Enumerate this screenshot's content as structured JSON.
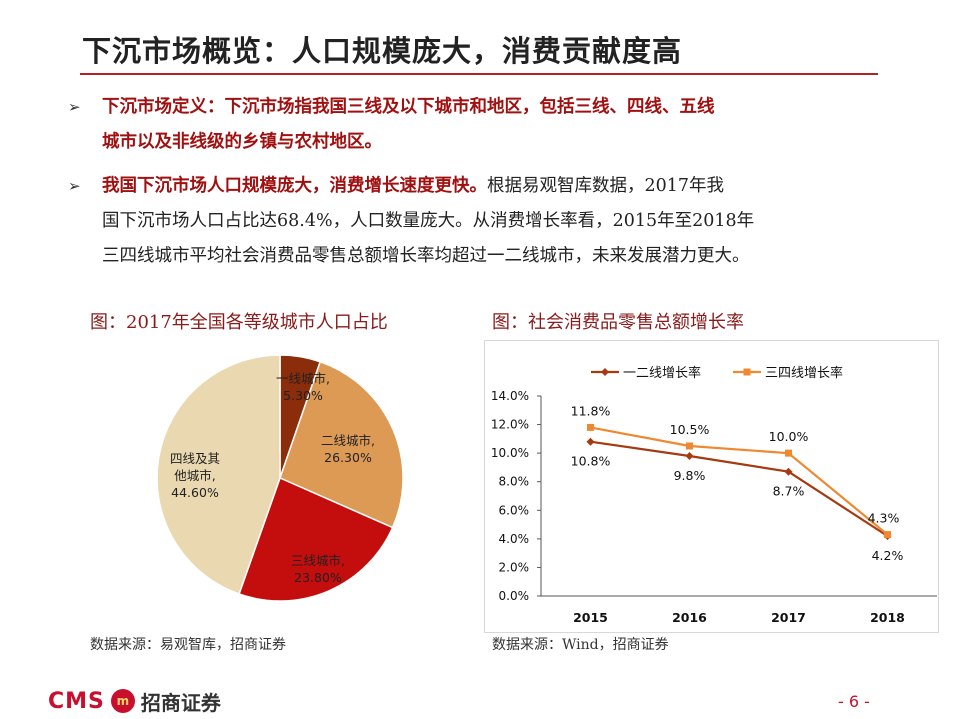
{
  "header": {
    "title": "下沉市场概览：人口规模庞大，消费贡献度高"
  },
  "bullets": [
    {
      "lead": "下沉市场定义：下沉市场指我国三线及以下城市和地区，包括三线、四线、五线城市以及非线级的乡镇与农村地区。",
      "line1": "下沉市场定义：下沉市场指我国三线及以下城市和地区，包括三线、四线、五线",
      "line2": "城市以及非线级的乡镇与农村地区。"
    },
    {
      "lead": "我国下沉市场人口规模庞大，消费增长速度更快。",
      "rest1": "根据易观智库数据，2017年我",
      "line2": "国下沉市场人口占比达68.4%，人口数量庞大。从消费增长率看，2015年至2018年",
      "line3": "三四线城市平均社会消费品零售总额增长率均超过一二线城市，未来发展潜力更大。"
    }
  ],
  "figure_left": {
    "title": "图：2017年全国各等级城市人口占比",
    "source": "数据来源：易观智库，招商证券"
  },
  "figure_right": {
    "title": "图：社会消费品零售总额增长率",
    "source": "数据来源：Wind，招商证券"
  },
  "footer": {
    "brand": "CMS",
    "brand_cn": "招商证券",
    "logo_mark": "m",
    "page": "- 6 -"
  },
  "chart_data": [
    {
      "type": "pie",
      "categories": [
        "一线城市",
        "二线城市",
        "三线城市",
        "四线及其他城市"
      ],
      "values": [
        5.3,
        26.3,
        23.8,
        44.6
      ],
      "value_labels": [
        "5.30%",
        "26.30%",
        "23.80%",
        "44.60%"
      ],
      "label_lines": [
        [
          "一线城市,",
          "5.30%"
        ],
        [
          "二线城市,",
          "26.30%"
        ],
        [
          "三线城市,",
          "23.80%"
        ],
        [
          "四线及其",
          "他城市,",
          "44.60%"
        ]
      ],
      "colors": [
        "#8b2c0a",
        "#dd9a55",
        "#c40d0d",
        "#ead9b0"
      ],
      "title": "图：2017年全国各等级城市人口占比"
    },
    {
      "type": "line",
      "categories": [
        "2015",
        "2016",
        "2017",
        "2018"
      ],
      "series": [
        {
          "name": "一二线增长率",
          "values": [
            10.8,
            9.8,
            8.7,
            4.2
          ],
          "labels": [
            "10.8%",
            "9.8%",
            "8.7%",
            "4.2%"
          ],
          "color": "#a63a10"
        },
        {
          "name": "三四线增长率",
          "values": [
            11.8,
            10.5,
            10.0,
            4.3
          ],
          "labels": [
            "11.8%",
            "10.5%",
            "10.0%",
            "4.3%"
          ],
          "color": "#f08830"
        }
      ],
      "yticks": [
        "0.0%",
        "2.0%",
        "4.0%",
        "6.0%",
        "8.0%",
        "10.0%",
        "12.0%",
        "14.0%"
      ],
      "ylim": [
        0,
        14
      ],
      "legend": "top",
      "grid": false,
      "title": "图：社会消费品零售总额增长率"
    }
  ]
}
